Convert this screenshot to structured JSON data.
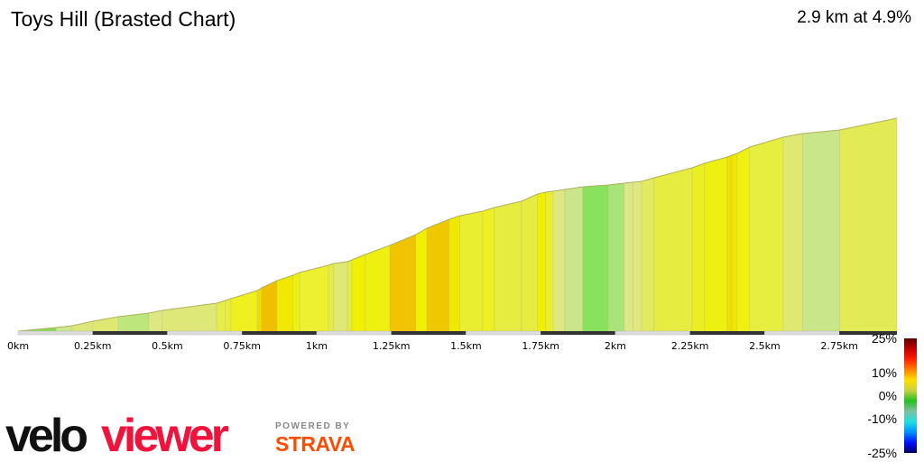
{
  "header": {
    "title": "Toys Hill (Brasted Chart)",
    "summary": "2.9 km at 4.9%"
  },
  "chart_data": {
    "type": "area",
    "title": "Toys Hill (Brasted Chart)",
    "xlabel": "",
    "ylabel": "",
    "x_unit": "km",
    "xlim": [
      0,
      2.943
    ],
    "ylim": [
      0,
      141.6
    ],
    "x_ticks": [
      "0km",
      "0.25km",
      "0.5km",
      "0.75km",
      "1km",
      "1.25km",
      "1.5km",
      "1.75km",
      "2km",
      "2.25km",
      "2.5km",
      "2.75km"
    ],
    "x_tick_values": [
      0,
      0.25,
      0.5,
      0.75,
      1,
      1.25,
      1.5,
      1.75,
      2,
      2.25,
      2.5,
      2.75
    ],
    "profile": [
      [
        0,
        0
      ],
      [
        0.127,
        2.4
      ],
      [
        0.181,
        3.6
      ],
      [
        0.251,
        6.6
      ],
      [
        0.335,
        9.6
      ],
      [
        0.438,
        12
      ],
      [
        0.483,
        13.8
      ],
      [
        0.665,
        18.6
      ],
      [
        0.695,
        20.4
      ],
      [
        0.713,
        21.6
      ],
      [
        0.801,
        27
      ],
      [
        0.816,
        28.8
      ],
      [
        0.867,
        33.6
      ],
      [
        0.921,
        37.2
      ],
      [
        0.943,
        39
      ],
      [
        1.039,
        43.8
      ],
      [
        1.057,
        45
      ],
      [
        1.103,
        46.2
      ],
      [
        1.118,
        47.4
      ],
      [
        1.163,
        51
      ],
      [
        1.245,
        57
      ],
      [
        1.332,
        64.2
      ],
      [
        1.369,
        68.4
      ],
      [
        1.444,
        74.4
      ],
      [
        1.48,
        76.8
      ],
      [
        1.556,
        79.8
      ],
      [
        1.595,
        82.2
      ],
      [
        1.686,
        86.4
      ],
      [
        1.74,
        91.2
      ],
      [
        1.767,
        92.4
      ],
      [
        1.792,
        93
      ],
      [
        1.831,
        94.2
      ],
      [
        1.891,
        96
      ],
      [
        1.976,
        97.2
      ],
      [
        2.03,
        98.4
      ],
      [
        2.06,
        99
      ],
      [
        2.088,
        99.6
      ],
      [
        2.13,
        102
      ],
      [
        2.257,
        108.6
      ],
      [
        2.299,
        111.6
      ],
      [
        2.375,
        115.8
      ],
      [
        2.39,
        117
      ],
      [
        2.408,
        118.2
      ],
      [
        2.45,
        122.4
      ],
      [
        2.562,
        129
      ],
      [
        2.628,
        131.4
      ],
      [
        2.752,
        133.8
      ],
      [
        2.943,
        141.6
      ]
    ],
    "segment_colors": [
      "#86dc56",
      "#cde88a",
      "#dce87c",
      "#dfe972",
      "#bde67c",
      "#dde882",
      "#dde878",
      "#e6ec4c",
      "#e9ee3c",
      "#eef020",
      "#f0dc00",
      "#f0c000",
      "#f0e800",
      "#eef012",
      "#ecf030",
      "#e6ec44",
      "#dfe874",
      "#e6ec44",
      "#f0f000",
      "#eff010",
      "#f0c400",
      "#f0f000",
      "#f0c800",
      "#f0e800",
      "#eaee30",
      "#eef022",
      "#e6ec40",
      "#e6ec40",
      "#f0f000",
      "#eaee30",
      "#dfe880",
      "#c9e68a",
      "#88e25e",
      "#a8e47a",
      "#dde88a",
      "#e0e880",
      "#e2ea60",
      "#e6ec40",
      "#eaee22",
      "#eef012",
      "#f0e000",
      "#f0e600",
      "#eef012",
      "#e6ee40",
      "#dfe870",
      "#c9e68a",
      "#e2ea55"
    ],
    "legend": {
      "labels": [
        "25%",
        "10%",
        "0%",
        "-10%",
        "-25%"
      ],
      "values": [
        25,
        10,
        0,
        -10,
        -25
      ],
      "gradient": [
        "#5a0000",
        "#c00000",
        "#ff2000",
        "#ff8000",
        "#ffe000",
        "#c8d040",
        "#20c020",
        "#80c0a0",
        "#20e0e0",
        "#0090ff",
        "#0010ff",
        "#000060"
      ]
    }
  },
  "branding": {
    "logo_black": "velo",
    "logo_red": "viewer",
    "powered": "POWERED BY",
    "strava": "STRAVA"
  }
}
